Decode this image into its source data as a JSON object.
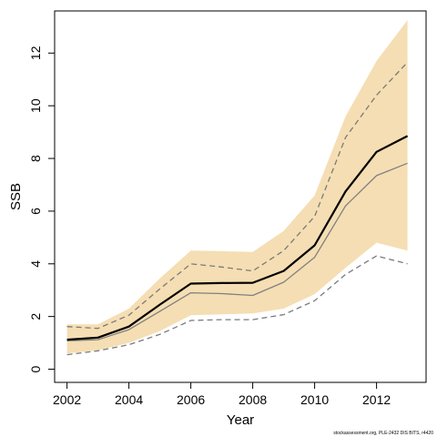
{
  "chart_data": {
    "type": "line",
    "title": "",
    "xlabel": "Year",
    "ylabel": "SSB",
    "xlim": [
      2001.6,
      2013.6
    ],
    "ylim": [
      -0.5,
      13.6
    ],
    "xticks": [
      2002,
      2004,
      2006,
      2008,
      2010,
      2012
    ],
    "yticks": [
      0,
      2,
      4,
      6,
      8,
      10,
      12
    ],
    "grid": false,
    "legend": "none",
    "x": [
      2002,
      2003,
      2004,
      2005,
      2006,
      2007,
      2008,
      2009,
      2010,
      2011,
      2012,
      2013
    ],
    "series": [
      {
        "role": "band",
        "color": "#f5deb3",
        "lower": [
          0.6,
          0.72,
          1.0,
          1.45,
          2.05,
          2.08,
          2.12,
          2.3,
          2.85,
          3.85,
          4.8,
          4.5
        ],
        "upper": [
          1.7,
          1.7,
          2.3,
          3.45,
          4.5,
          4.48,
          4.45,
          5.25,
          6.6,
          9.6,
          11.7,
          13.25
        ]
      },
      {
        "role": "upper-dashed",
        "color": "#7a7a7a",
        "values": [
          1.62,
          1.55,
          2.05,
          3.05,
          4.0,
          3.88,
          3.73,
          4.5,
          5.8,
          8.8,
          10.4,
          11.65
        ]
      },
      {
        "role": "lower-dashed",
        "color": "#7a7a7a",
        "values": [
          0.55,
          0.7,
          0.93,
          1.32,
          1.85,
          1.88,
          1.88,
          2.07,
          2.6,
          3.6,
          4.3,
          4.0
        ]
      },
      {
        "role": "grey-line",
        "color": "#808080",
        "values": [
          1.08,
          1.12,
          1.5,
          2.2,
          2.9,
          2.87,
          2.8,
          3.3,
          4.25,
          6.2,
          7.35,
          7.82
        ]
      },
      {
        "role": "main-line",
        "color": "#000000",
        "values": [
          1.12,
          1.2,
          1.62,
          2.45,
          3.25,
          3.27,
          3.28,
          3.73,
          4.7,
          6.75,
          8.25,
          8.85
        ]
      }
    ]
  },
  "footnote": "stockassessment.org, PLE-2432 DIS BITS, r4420"
}
